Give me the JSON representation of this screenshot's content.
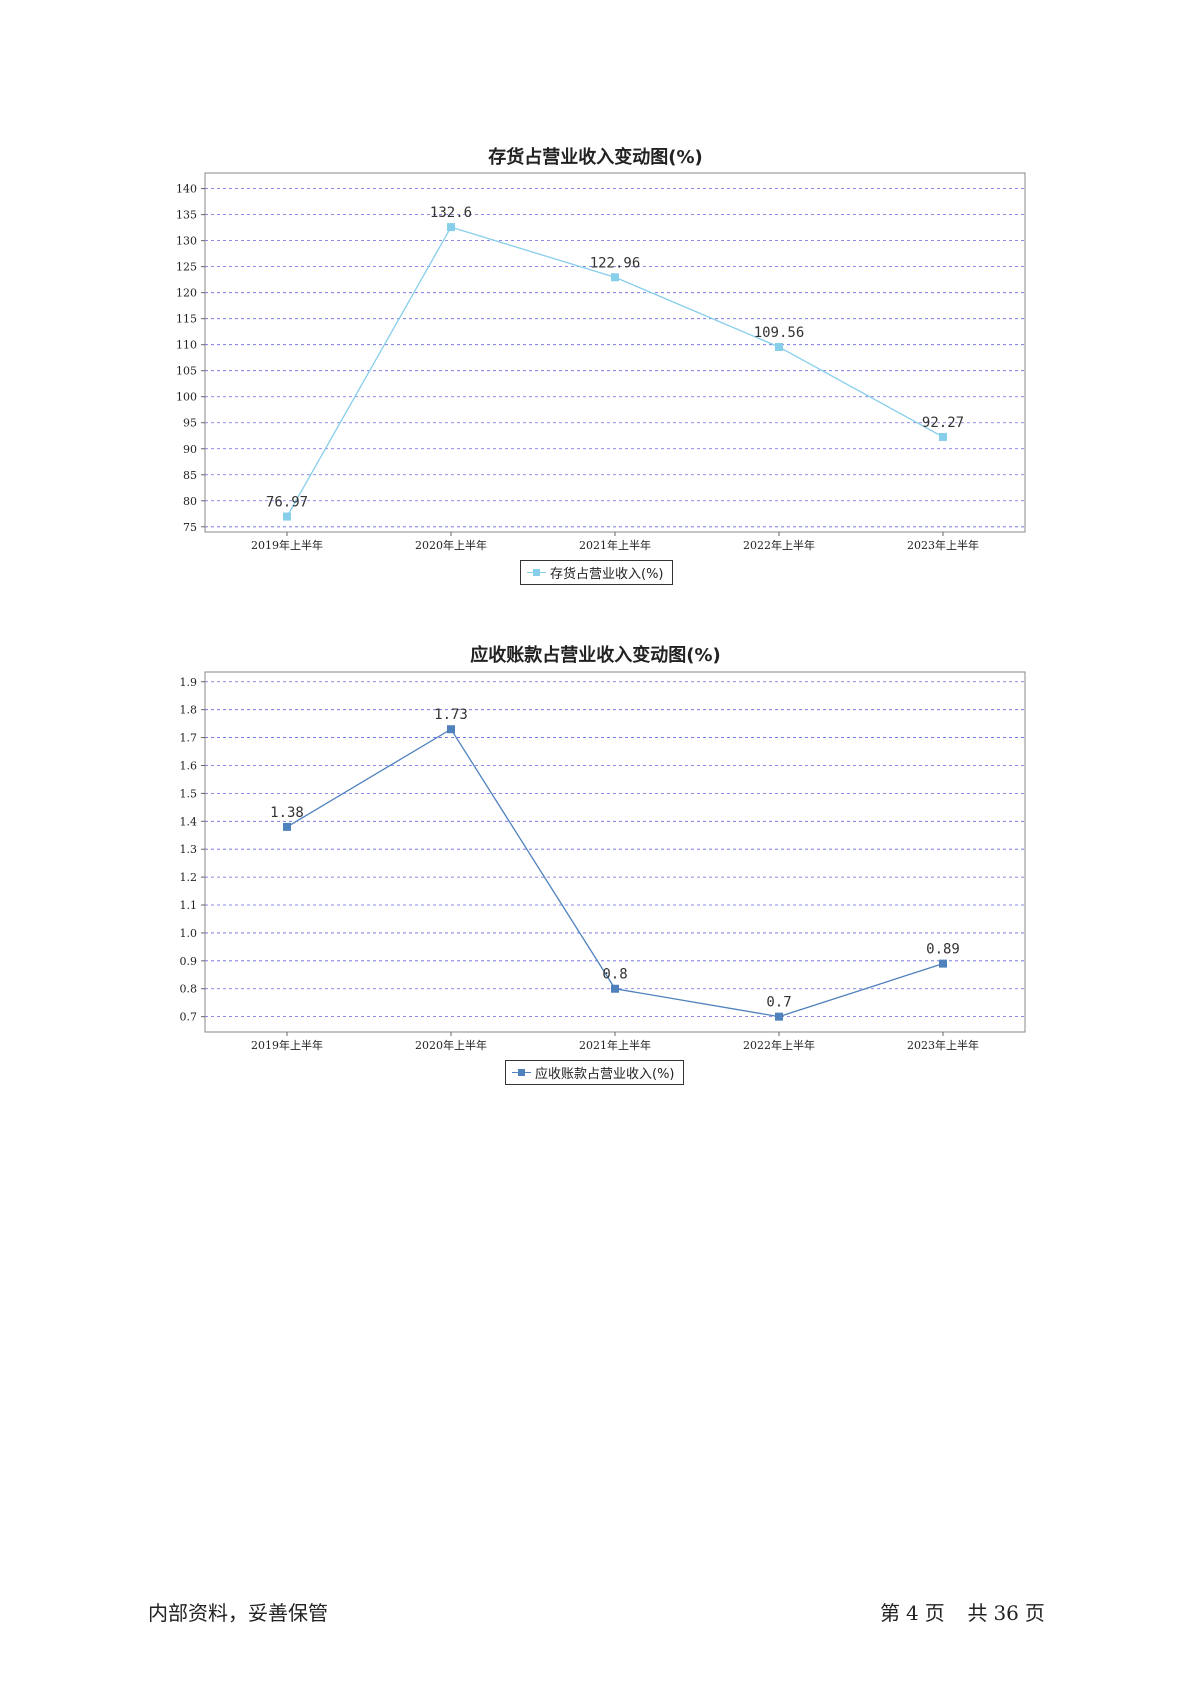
{
  "charts": [
    {
      "type": "line",
      "title": "存货占营业收入变动图(%)",
      "categories": [
        "2019年上半年",
        "2020年上半年",
        "2021年上半年",
        "2022年上半年",
        "2023年上半年"
      ],
      "series": [
        {
          "name": "存货占营业收入(%)",
          "values": [
            76.97,
            132.6,
            122.96,
            109.56,
            92.27
          ],
          "labels": [
            "76.97",
            "132.6",
            "122.96",
            "109.56",
            "92.27"
          ]
        }
      ],
      "yticks": [
        "75",
        "80",
        "85",
        "90",
        "95",
        "100",
        "105",
        "110",
        "115",
        "120",
        "125",
        "130",
        "135",
        "140"
      ],
      "ylim": [
        74,
        143
      ],
      "color": "#87CEEB",
      "grid": true,
      "legend": "bottom-center"
    },
    {
      "type": "line",
      "title": "应收账款占营业收入变动图(%)",
      "categories": [
        "2019年上半年",
        "2020年上半年",
        "2021年上半年",
        "2022年上半年",
        "2023年上半年"
      ],
      "series": [
        {
          "name": "应收账款占营业收入(%)",
          "values": [
            1.38,
            1.73,
            0.8,
            0.7,
            0.89
          ],
          "labels": [
            "1.38",
            "1.73",
            "0.8",
            "0.7",
            "0.89"
          ]
        }
      ],
      "yticks": [
        "0.7",
        "0.8",
        "0.9",
        "1.0",
        "1.1",
        "1.2",
        "1.3",
        "1.4",
        "1.5",
        "1.6",
        "1.7",
        "1.8",
        "1.9"
      ],
      "ylim": [
        0.645,
        1.935
      ],
      "color": "#4F81BD",
      "grid": true,
      "legend": "bottom-center"
    }
  ],
  "footer": {
    "left": "内部资料，妥善保管",
    "page_prefix": "第",
    "page_number": "4",
    "page_unit": "页",
    "total_prefix": "共",
    "total_pages": "36",
    "total_unit": "页"
  }
}
